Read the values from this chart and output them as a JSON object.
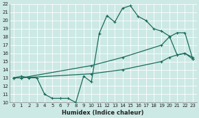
{
  "xlabel": "Humidex (Indice chaleur)",
  "xlim": [
    -0.5,
    23.5
  ],
  "ylim": [
    10,
    22
  ],
  "xticks": [
    0,
    1,
    2,
    3,
    4,
    5,
    6,
    7,
    8,
    9,
    10,
    11,
    12,
    13,
    14,
    15,
    16,
    17,
    18,
    19,
    20,
    21,
    22,
    23
  ],
  "yticks": [
    10,
    11,
    12,
    13,
    14,
    15,
    16,
    17,
    18,
    19,
    20,
    21,
    22
  ],
  "bg_color": "#cce9e5",
  "grid_color": "#b0d8d3",
  "line_color": "#1a6b5a",
  "line1_x": [
    0,
    1,
    2,
    3,
    4,
    5,
    6,
    7,
    8,
    9,
    10,
    11,
    12,
    13,
    14,
    15,
    16,
    17,
    18,
    19,
    20,
    21,
    22,
    23
  ],
  "line1_y": [
    13.0,
    13.2,
    13.0,
    13.0,
    11.0,
    10.5,
    10.5,
    10.5,
    10.0,
    13.2,
    12.5,
    18.4,
    20.6,
    19.8,
    21.5,
    21.8,
    20.5,
    20.0,
    19.0,
    18.7,
    18.1,
    15.8,
    16.0,
    15.5
  ],
  "line2_x": [
    0,
    1,
    10,
    14,
    19,
    20,
    21,
    22,
    23
  ],
  "line2_y": [
    13.0,
    13.0,
    14.5,
    15.5,
    17.0,
    18.0,
    18.5,
    18.5,
    15.3
  ],
  "line3_x": [
    0,
    1,
    10,
    14,
    19,
    20,
    21,
    22,
    23
  ],
  "line3_y": [
    13.0,
    13.0,
    13.5,
    14.0,
    15.0,
    15.5,
    15.8,
    16.0,
    15.3
  ],
  "tickfontsize": 5,
  "labelfontsize": 6
}
